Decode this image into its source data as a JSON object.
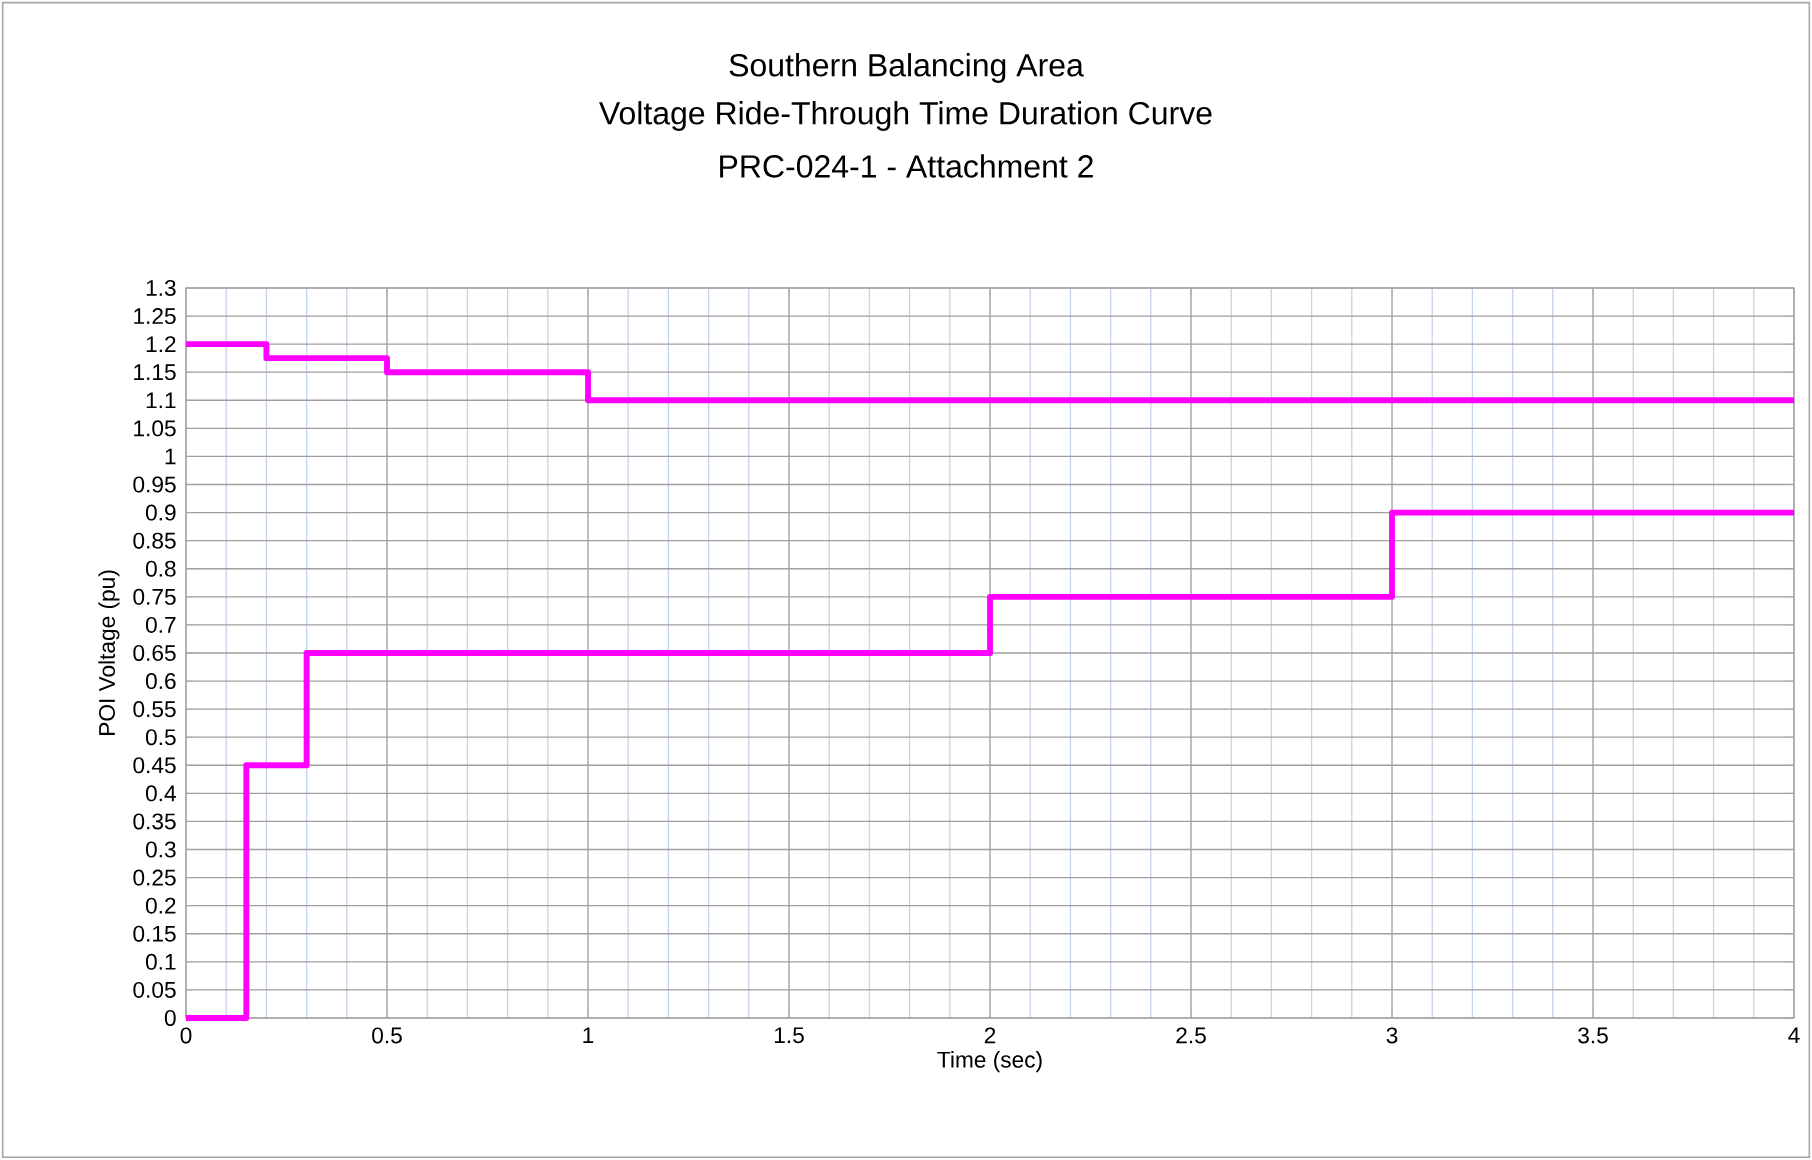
{
  "chart_data": {
    "type": "step",
    "title": "Southern Balancing Area",
    "subtitle": "Voltage Ride-Through Time Duration Curve",
    "annotations": [
      "PRC-024-1 - Attachment 2"
    ],
    "xlabel": "Time (sec)",
    "ylabel": "POI Voltage (pu)",
    "series": [
      {
        "color": "#ff00ff",
        "x": [
          0,
          0.2,
          0.5,
          1,
          4
        ],
        "values": [
          1.2,
          1.175,
          1.15,
          1.1,
          1.1
        ]
      },
      {
        "color": "#ff00ff",
        "x": [
          0,
          0.15,
          0.3,
          2,
          3,
          4
        ],
        "values": [
          0,
          0.45,
          0.65,
          0.75,
          0.9,
          0.9
        ]
      }
    ],
    "xlim": [
      0,
      4
    ],
    "xticks": [
      0,
      0.5,
      1,
      1.5,
      2,
      2.5,
      3,
      3.5,
      4
    ],
    "ylim": [
      0,
      1.3
    ],
    "yticks": [
      0,
      0.05,
      0.1,
      0.15,
      0.2,
      0.25,
      0.3,
      0.35,
      0.4,
      0.45,
      0.5,
      0.55,
      0.6,
      0.65,
      0.7,
      0.75,
      0.8,
      0.85,
      0.9,
      0.95,
      1,
      1.05,
      1.1,
      1.15,
      1.2,
      1.25,
      1.3
    ],
    "grid": true,
    "marker": "none",
    "line_style": "solid"
  }
}
